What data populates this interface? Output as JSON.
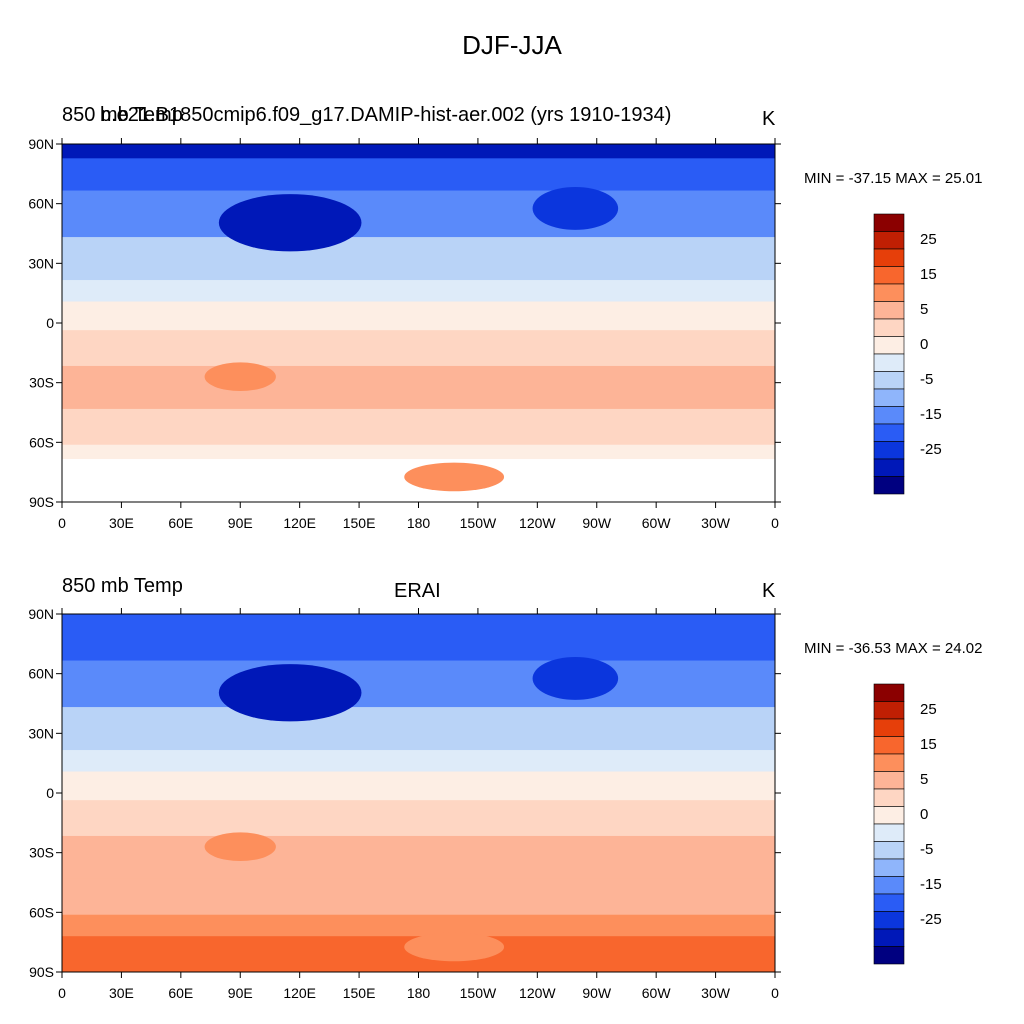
{
  "figure": {
    "title": "DJF-JJA"
  },
  "panels": [
    {
      "left_label": "850 mb Temp",
      "center_label": "b.e21.B1850cmip6.f09_g17.DAMIP-hist-aer.002 (yrs 1910-1934)",
      "units": "K",
      "min_max": "MIN = -37.15 MAX =  25.01",
      "field_kind": "model"
    },
    {
      "left_label": "850 mb Temp",
      "center_label": "ERAI",
      "units": "K",
      "min_max": "MIN = -36.53 MAX =  24.02",
      "field_kind": "obs"
    }
  ],
  "axes": {
    "lat_labels": [
      "90N",
      "60N",
      "30N",
      "0",
      "30S",
      "60S",
      "90S"
    ],
    "lon_labels": [
      "0",
      "30E",
      "60E",
      "90E",
      "120E",
      "150E",
      "180",
      "150W",
      "120W",
      "90W",
      "60W",
      "30W",
      "0"
    ]
  },
  "colorbar": {
    "labels": [
      "25",
      "15",
      "5",
      "0",
      "-5",
      "-15",
      "-25"
    ],
    "colors": [
      "#8b0000",
      "#c01f03",
      "#e63f0a",
      "#f8662d",
      "#fd8f5c",
      "#fdb497",
      "#fed6c3",
      "#fdeee4",
      "#deebf9",
      "#b9d3f7",
      "#8fb5fb",
      "#5a8afa",
      "#2a5cf5",
      "#0b36dd",
      "#0018b8",
      "#000080"
    ]
  }
}
